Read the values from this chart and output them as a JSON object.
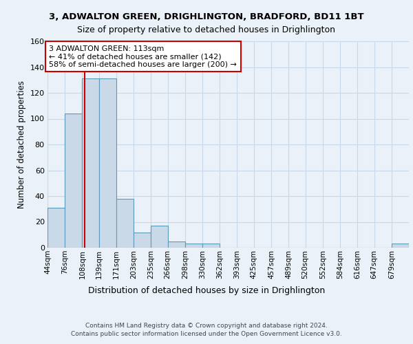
{
  "title1": "3, ADWALTON GREEN, DRIGHLINGTON, BRADFORD, BD11 1BT",
  "title2": "Size of property relative to detached houses in Drighlington",
  "xlabel": "Distribution of detached houses by size in Drighlington",
  "ylabel": "Number of detached properties",
  "footer1": "Contains HM Land Registry data © Crown copyright and database right 2024.",
  "footer2": "Contains public sector information licensed under the Open Government Licence v3.0.",
  "bin_labels": [
    "44sqm",
    "76sqm",
    "108sqm",
    "139sqm",
    "171sqm",
    "203sqm",
    "235sqm",
    "266sqm",
    "298sqm",
    "330sqm",
    "362sqm",
    "393sqm",
    "425sqm",
    "457sqm",
    "489sqm",
    "520sqm",
    "552sqm",
    "584sqm",
    "616sqm",
    "647sqm",
    "679sqm"
  ],
  "bin_edges": [
    44,
    76,
    108,
    139,
    171,
    203,
    235,
    266,
    298,
    330,
    362,
    393,
    425,
    457,
    489,
    520,
    552,
    584,
    616,
    647,
    679,
    711
  ],
  "bar_heights": [
    31,
    104,
    131,
    131,
    38,
    12,
    17,
    5,
    3,
    3,
    0,
    0,
    0,
    0,
    0,
    0,
    0,
    0,
    0,
    0,
    3
  ],
  "bar_facecolor": "#c9d9e8",
  "bar_edgecolor": "#5b9abd",
  "property_size": 113,
  "vline_color": "#cc0000",
  "annotation_text": "3 ADWALTON GREEN: 113sqm\n← 41% of detached houses are smaller (142)\n58% of semi-detached houses are larger (200) →",
  "annotation_box_edgecolor": "#cc0000",
  "annotation_box_facecolor": "#ffffff",
  "ylim": [
    0,
    160
  ],
  "yticks": [
    0,
    20,
    40,
    60,
    80,
    100,
    120,
    140,
    160
  ],
  "grid_color": "#c8d8e8",
  "background_color": "#eaf1f8",
  "axes_background": "#eaf1f8"
}
